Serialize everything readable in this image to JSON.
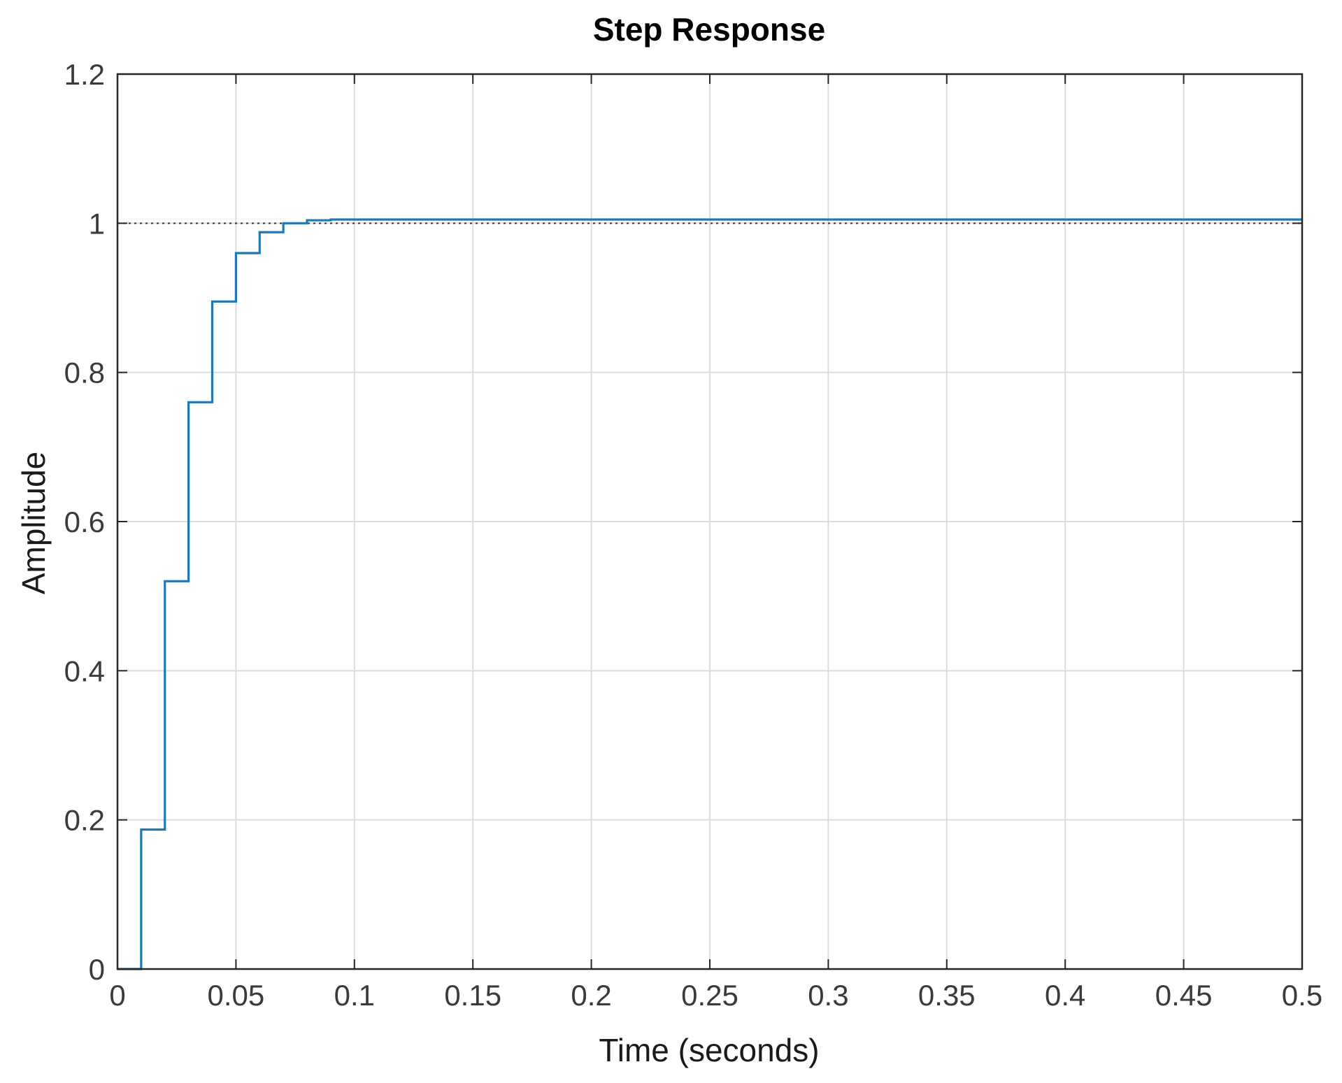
{
  "chart_data": {
    "type": "line",
    "title": "Step Response",
    "xlabel": "Time (seconds)",
    "ylabel": "Amplitude",
    "xlim": [
      0,
      0.5
    ],
    "ylim": [
      0,
      1.2
    ],
    "grid": true,
    "legend": "none",
    "x_ticks": [
      0,
      0.05,
      0.1,
      0.15,
      0.2,
      0.25,
      0.3,
      0.35,
      0.4,
      0.45,
      0.5
    ],
    "x_tick_labels": [
      "0",
      "0.05",
      "0.1",
      "0.15",
      "0.2",
      "0.25",
      "0.3",
      "0.35",
      "0.4",
      "0.45",
      "0.5"
    ],
    "y_ticks": [
      0,
      0.2,
      0.4,
      0.6,
      0.8,
      1.0,
      1.2
    ],
    "y_tick_labels": [
      "0",
      "0.2",
      "0.4",
      "0.6",
      "0.8",
      "1",
      "1.2"
    ],
    "reference_line": {
      "y": 1.0,
      "style": "dotted",
      "color": "#333333"
    },
    "series": [
      {
        "style": "step",
        "color": "#1f77b4",
        "x": [
          0,
          0.01,
          0.02,
          0.03,
          0.04,
          0.05,
          0.06,
          0.07,
          0.08,
          0.09,
          0.1,
          0.15,
          0.2,
          0.25,
          0.3,
          0.35,
          0.4,
          0.45,
          0.5
        ],
        "y": [
          0,
          0.187,
          0.52,
          0.76,
          0.895,
          0.96,
          0.988,
          1.0,
          1.004,
          1.005,
          1.005,
          1.005,
          1.005,
          1.005,
          1.005,
          1.005,
          1.005,
          1.005,
          1.005
        ]
      }
    ]
  }
}
